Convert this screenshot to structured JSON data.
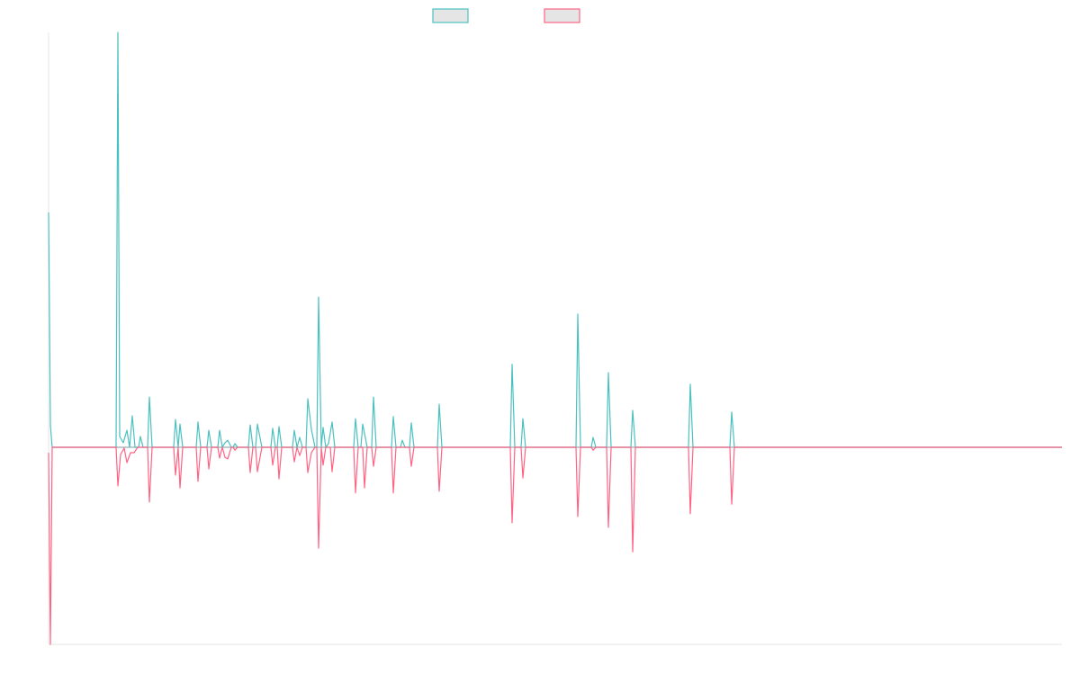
{
  "chart_data": {
    "type": "line",
    "title": "",
    "xlabel": "",
    "ylabel": "",
    "xlim": [
      0,
      563
    ],
    "ylim": [
      -47.5,
      100
    ],
    "grid": false,
    "legend_placement": "top-center",
    "series": [
      {
        "name": "",
        "color": "#4bc0c0",
        "points": [
          [
            0,
            56.6
          ],
          [
            1,
            5.2
          ],
          [
            2,
            0
          ],
          [
            38.5,
            100
          ],
          [
            39.5,
            2.6
          ],
          [
            41.5,
            1.1
          ],
          [
            43.5,
            4.1
          ],
          [
            45,
            0
          ],
          [
            46.5,
            7.6
          ],
          [
            48,
            0
          ],
          [
            51,
            2.6
          ],
          [
            52.5,
            0
          ],
          [
            56,
            12.1
          ],
          [
            57.5,
            0
          ],
          [
            70.5,
            6.7
          ],
          [
            72,
            0
          ],
          [
            73,
            5.6
          ],
          [
            74.5,
            0
          ],
          [
            83,
            6.1
          ],
          [
            84.5,
            0
          ],
          [
            89,
            4.1
          ],
          [
            90.5,
            0
          ],
          [
            95,
            4.1
          ],
          [
            96.5,
            0
          ],
          [
            98,
            1.1
          ],
          [
            99.5,
            1.7
          ],
          [
            101.5,
            0
          ],
          [
            103.5,
            0.9
          ],
          [
            105,
            0
          ],
          [
            112,
            5.4
          ],
          [
            113.5,
            0
          ],
          [
            116,
            5.6
          ],
          [
            118.5,
            0
          ],
          [
            124.5,
            4.6
          ],
          [
            126,
            0
          ],
          [
            128,
            5.0
          ],
          [
            129.5,
            0
          ],
          [
            136.5,
            4.1
          ],
          [
            138,
            0
          ],
          [
            139.5,
            2.4
          ],
          [
            141,
            0
          ],
          [
            144,
            11.7
          ],
          [
            146,
            4.3
          ],
          [
            148,
            0
          ],
          [
            150,
            36.2
          ],
          [
            151.5,
            0
          ],
          [
            152.5,
            4.8
          ],
          [
            154,
            0
          ],
          [
            155.5,
            0.9
          ],
          [
            157.5,
            6.1
          ],
          [
            159,
            0
          ],
          [
            170.5,
            6.9
          ],
          [
            172,
            0
          ],
          [
            174.5,
            5.6
          ],
          [
            177,
            0
          ],
          [
            180.5,
            12.1
          ],
          [
            182,
            0
          ],
          [
            191.5,
            7.4
          ],
          [
            193,
            0
          ],
          [
            196.5,
            1.7
          ],
          [
            198,
            0
          ],
          [
            201.5,
            5.9
          ],
          [
            203,
            0
          ],
          [
            217,
            10.4
          ],
          [
            218.5,
            0
          ],
          [
            257.5,
            20
          ],
          [
            259,
            0
          ],
          [
            263.5,
            6.9
          ],
          [
            265,
            0
          ],
          [
            294,
            32.1
          ],
          [
            295.5,
            0
          ],
          [
            302.5,
            2.4
          ],
          [
            304,
            0
          ],
          [
            311,
            18
          ],
          [
            312.5,
            0
          ],
          [
            324.5,
            8.9
          ],
          [
            326,
            0
          ],
          [
            356.5,
            15.2
          ],
          [
            358,
            0
          ],
          [
            379.5,
            8.5
          ],
          [
            381,
            0
          ],
          [
            563,
            0
          ]
        ]
      },
      {
        "name": "",
        "color": "#ff6384",
        "points": [
          [
            0,
            -1.3
          ],
          [
            1,
            -47.5
          ],
          [
            2,
            0
          ],
          [
            38.5,
            -9.3
          ],
          [
            40,
            -1.7
          ],
          [
            42,
            -0.2
          ],
          [
            43.5,
            -3.7
          ],
          [
            45.5,
            -1.3
          ],
          [
            47.5,
            -1.3
          ],
          [
            49.5,
            0
          ],
          [
            56,
            -13.2
          ],
          [
            57.5,
            0
          ],
          [
            70.5,
            -6.7
          ],
          [
            72,
            0
          ],
          [
            73,
            -9.8
          ],
          [
            74.5,
            0
          ],
          [
            83,
            -8.2
          ],
          [
            84.5,
            0
          ],
          [
            89,
            -5.2
          ],
          [
            90.5,
            0
          ],
          [
            95,
            -2.6
          ],
          [
            96.5,
            0
          ],
          [
            98,
            -2.4
          ],
          [
            99.5,
            -2.8
          ],
          [
            101.5,
            0
          ],
          [
            103.5,
            -0.7
          ],
          [
            105,
            0
          ],
          [
            112,
            -6.1
          ],
          [
            113.5,
            0
          ],
          [
            116,
            -5.9
          ],
          [
            118.5,
            0
          ],
          [
            124.5,
            -4.3
          ],
          [
            126,
            0
          ],
          [
            128,
            -7.6
          ],
          [
            129.5,
            0
          ],
          [
            136.5,
            -3.5
          ],
          [
            138,
            0
          ],
          [
            139.5,
            -2
          ],
          [
            141,
            0
          ],
          [
            144,
            -6.1
          ],
          [
            146,
            -1.3
          ],
          [
            148,
            0
          ],
          [
            150,
            -24.3
          ],
          [
            151.5,
            0
          ],
          [
            152.5,
            -4.3
          ],
          [
            154,
            0
          ],
          [
            157.5,
            -5.9
          ],
          [
            159,
            0
          ],
          [
            170.5,
            -11.0
          ],
          [
            172,
            0
          ],
          [
            175.5,
            -9.8
          ],
          [
            177,
            0
          ],
          [
            180.5,
            -4.6
          ],
          [
            182,
            0
          ],
          [
            191.5,
            -11.0
          ],
          [
            193,
            0
          ],
          [
            201.5,
            -4.6
          ],
          [
            203,
            0
          ],
          [
            217,
            -10.6
          ],
          [
            218.5,
            0
          ],
          [
            257.5,
            -18.2
          ],
          [
            259,
            0
          ],
          [
            263.5,
            -7.4
          ],
          [
            265,
            0
          ],
          [
            294,
            -16.7
          ],
          [
            295.5,
            0
          ],
          [
            302.5,
            -0.7
          ],
          [
            304,
            0
          ],
          [
            311,
            -19.3
          ],
          [
            312.5,
            0
          ],
          [
            324.5,
            -25.2
          ],
          [
            326,
            0
          ],
          [
            356.5,
            -16
          ],
          [
            358,
            0
          ],
          [
            379.5,
            -13.7
          ],
          [
            381,
            0
          ],
          [
            563,
            0
          ]
        ]
      }
    ]
  }
}
